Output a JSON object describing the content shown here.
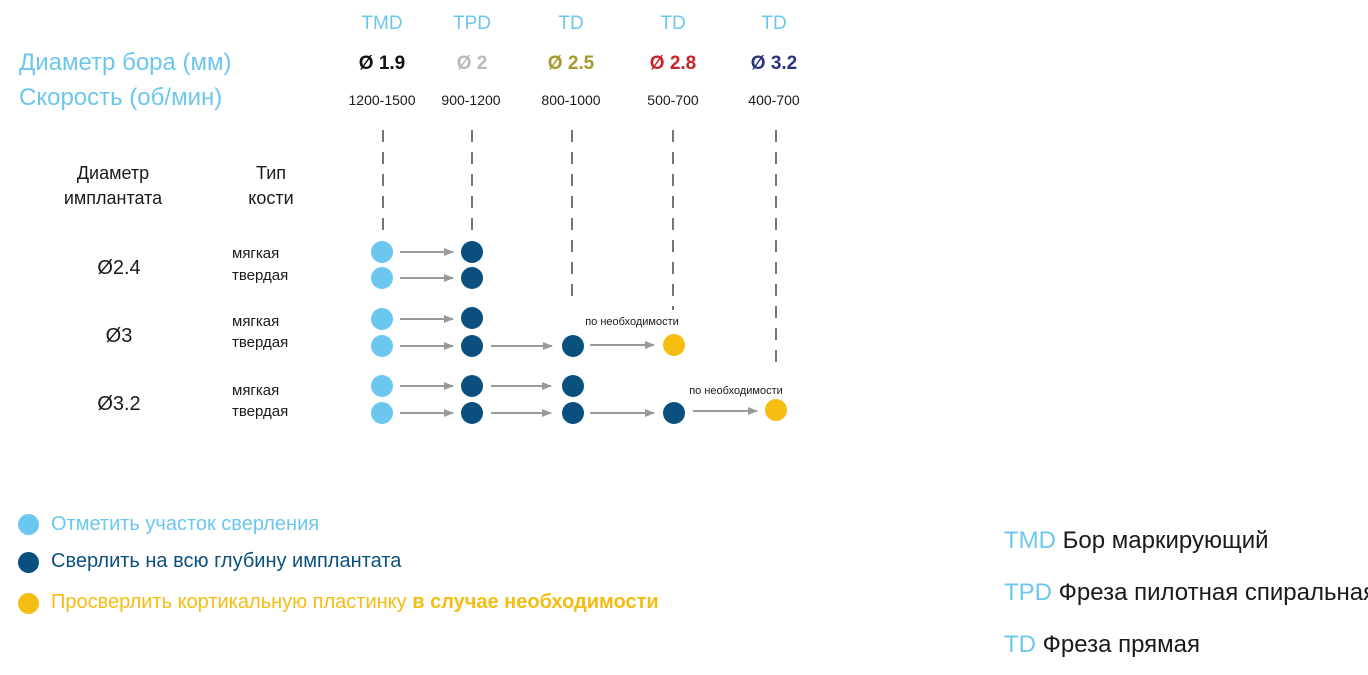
{
  "colors": {
    "light_blue": "#6cc7ef",
    "dark_blue": "#0b4f7e",
    "yellow": "#f5bd12",
    "arrow_gray": "#9a9a9a",
    "dia_black": "#111111",
    "dia_gray": "#b9b9b9",
    "dia_olive": "#a49a2c",
    "dia_red": "#c8232b",
    "dia_navy": "#28347e"
  },
  "header": {
    "row_label_diameter": "Диаметр бора (мм)",
    "row_label_speed": "Скорость (об/мин)"
  },
  "tools": [
    {
      "code": "TMD",
      "diameter": "Ø 1.9",
      "speed": "1200-1500",
      "diameter_color": "#111111"
    },
    {
      "code": "TPD",
      "diameter": "Ø 2",
      "speed": "900-1200",
      "diameter_color": "#b9b9b9"
    },
    {
      "code": "TD",
      "diameter": "Ø 2.5",
      "speed": "800-1000",
      "diameter_color": "#a49a2c"
    },
    {
      "code": "TD",
      "diameter": "Ø 2.8",
      "speed": "500-700",
      "diameter_color": "#c8232b"
    },
    {
      "code": "TD",
      "diameter": "Ø 3.2",
      "speed": "400-700",
      "diameter_color": "#28347e"
    }
  ],
  "table_headers": {
    "implant_diameter": [
      "Диаметр",
      "имплантата"
    ],
    "bone_type": [
      "Тип",
      "кости"
    ]
  },
  "rows": [
    {
      "implant": "Ø2.4",
      "bones": [
        {
          "label": "мягкая",
          "steps": [
            "light",
            "dark"
          ]
        },
        {
          "label": "твердая",
          "steps": [
            "light",
            "dark"
          ]
        }
      ]
    },
    {
      "implant": "Ø3",
      "bones": [
        {
          "label": "мягкая",
          "steps": [
            "light",
            "dark"
          ]
        },
        {
          "label": "твердая",
          "steps": [
            "light",
            "dark",
            "dark",
            "yellow"
          ],
          "note": "по необходимости"
        }
      ]
    },
    {
      "implant": "Ø3.2",
      "bones": [
        {
          "label": "мягкая",
          "steps": [
            "light",
            "dark",
            "dark"
          ]
        },
        {
          "label": "твердая",
          "steps": [
            "light",
            "dark",
            "dark",
            "dark",
            "yellow"
          ],
          "note": "по необходимости"
        }
      ]
    }
  ],
  "legend": [
    {
      "kind": "light",
      "text": "Отметить участок сверления"
    },
    {
      "kind": "dark",
      "text": "Сверлить на всю глубину имплантата"
    },
    {
      "kind": "yellow",
      "text": "Просверлить кортикальную пластинку ",
      "bold_text": "в случае необходимости"
    }
  ],
  "abbreviations": [
    {
      "code": "TMD",
      "meaning": "Бор маркирующий"
    },
    {
      "code": "TPD",
      "meaning": "Фреза пилотная спиральная"
    },
    {
      "code": "TD",
      "meaning": "Фреза прямая"
    }
  ]
}
